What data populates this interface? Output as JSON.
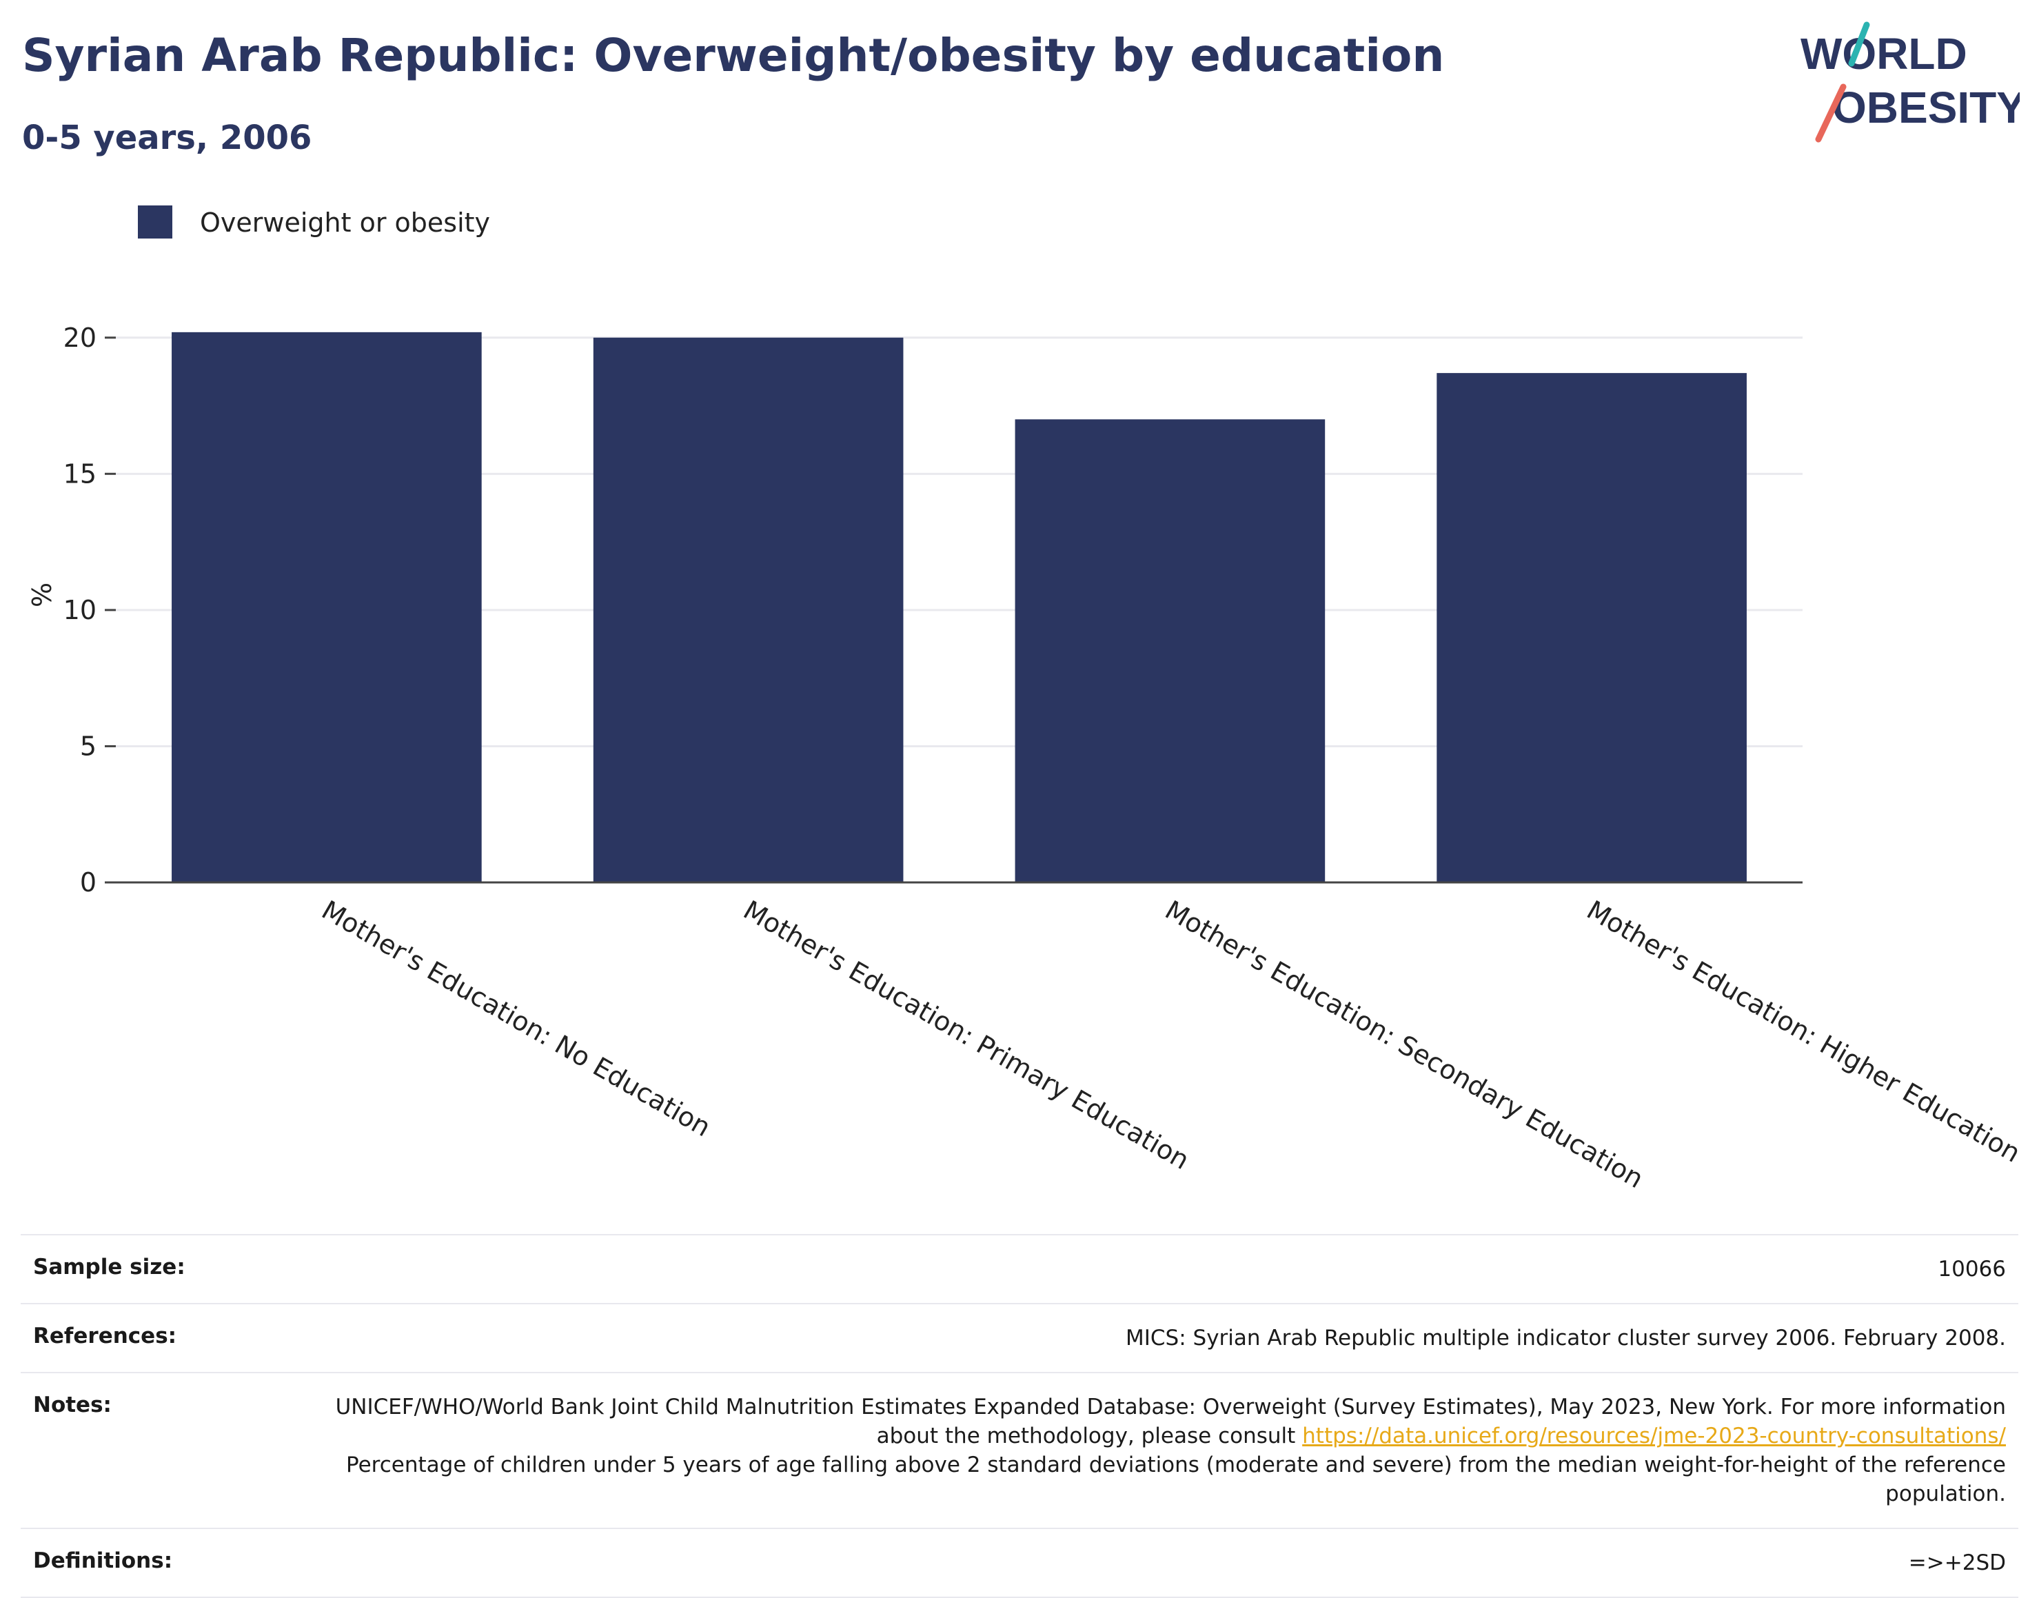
{
  "title": "Syrian Arab Republic: Overweight/obesity by education",
  "subtitle": "0-5 years, 2006",
  "logo": {
    "line1": "WORLD",
    "line2": "OBESITY",
    "colors": {
      "text": "#2b3661",
      "slash_top": "#2bb3b1",
      "slash_bottom": "#e8675a"
    }
  },
  "chart_data": {
    "type": "bar",
    "categories": [
      "Mother's Education: No Education",
      "Mother's Education: Primary Education",
      "Mother's Education: Secondary Education",
      "Mother's Education: Higher Education"
    ],
    "series": [
      {
        "name": "Overweight or obesity",
        "values": [
          20.2,
          20.0,
          17.0,
          18.7
        ],
        "color": "#2b3661"
      }
    ],
    "ylabel": "%",
    "ylim": [
      0,
      20.5
    ],
    "yticks": [
      0,
      5,
      10,
      15,
      20
    ],
    "grid": true,
    "legend_position": "top-left"
  },
  "footer": {
    "sample_size_label": "Sample size:",
    "sample_size_value": "10066",
    "references_label": "References:",
    "references_value": "MICS: Syrian Arab Republic multiple indicator cluster survey 2006. February 2008.",
    "notes_label": "Notes:",
    "notes_text_1": "UNICEF/WHO/World Bank Joint Child Malnutrition Estimates Expanded Database: Overweight (Survey Estimates), May 2023, New York. For more information about the methodology, please consult ",
    "notes_link": "https://data.unicef.org/resources/jme-2023-country-consultations/",
    "notes_text_2": "Percentage of children under 5 years of age falling above 2 standard deviations (moderate and severe) from the median weight-for-height of the reference population.",
    "definitions_label": "Definitions:",
    "definitions_value": "=>+2SD"
  }
}
